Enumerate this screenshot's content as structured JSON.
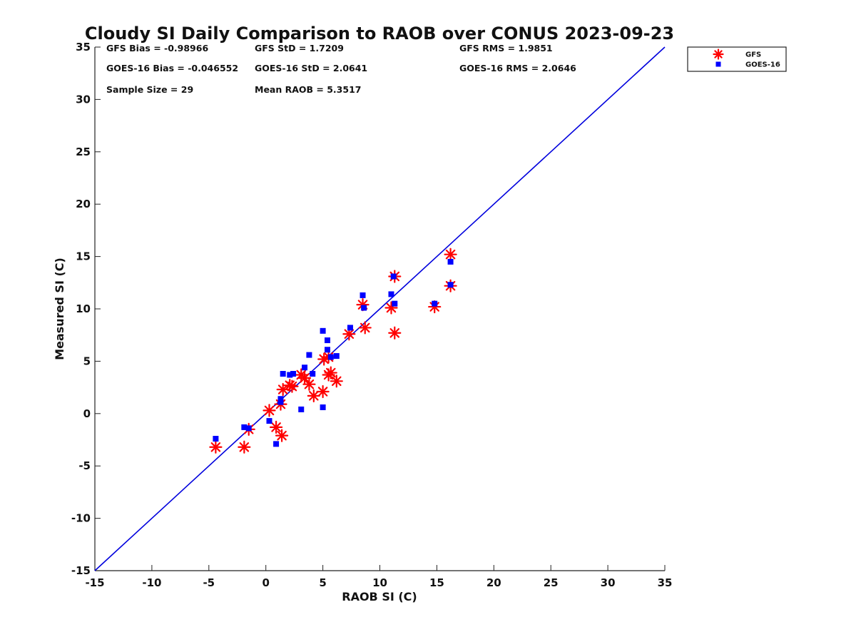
{
  "chart_data": {
    "type": "scatter",
    "title": "Cloudy SI Daily Comparison to RAOB over CONUS 2023-09-23",
    "xlabel": "RAOB SI (C)",
    "ylabel": "Measured SI (C)",
    "xlim": [
      -15,
      35
    ],
    "ylim": [
      -15,
      35
    ],
    "xticks": [
      -15,
      -10,
      -5,
      0,
      5,
      10,
      15,
      20,
      25,
      30,
      35
    ],
    "yticks": [
      -15,
      -10,
      -5,
      0,
      5,
      10,
      15,
      20,
      25,
      30,
      35
    ],
    "grid": false,
    "legend_position": "top-right-outside",
    "reference_line": {
      "x": [
        -15,
        35
      ],
      "y": [
        -15,
        35
      ],
      "color": "#0000dd"
    },
    "stats": [
      [
        "GFS Bias = -0.98966",
        "GFS StD = 1.7209",
        "GFS RMS = 1.9851"
      ],
      [
        "GOES-16 Bias = -0.046552",
        "GOES-16 StD = 2.0641",
        "GOES-16 RMS = 2.0646"
      ],
      [
        "Sample Size = 29",
        "Mean RAOB = 5.3517",
        ""
      ]
    ],
    "series": [
      {
        "name": "GFS",
        "marker": "asterisk",
        "color": "#ff0000",
        "points": [
          [
            -4.4,
            -3.2
          ],
          [
            -1.9,
            -3.2
          ],
          [
            -1.5,
            -1.5
          ],
          [
            0.3,
            0.3
          ],
          [
            0.9,
            -1.3
          ],
          [
            1.4,
            -2.1
          ],
          [
            1.3,
            0.9
          ],
          [
            1.5,
            2.3
          ],
          [
            2.1,
            2.7
          ],
          [
            2.3,
            2.6
          ],
          [
            3.1,
            3.7
          ],
          [
            3.4,
            3.4
          ],
          [
            3.8,
            2.8
          ],
          [
            4.2,
            1.7
          ],
          [
            5.0,
            2.1
          ],
          [
            5.1,
            5.2
          ],
          [
            5.5,
            3.7
          ],
          [
            5.5,
            5.4
          ],
          [
            5.7,
            3.9
          ],
          [
            6.2,
            3.1
          ],
          [
            7.3,
            7.6
          ],
          [
            8.5,
            10.4
          ],
          [
            8.7,
            8.2
          ],
          [
            11.0,
            10.1
          ],
          [
            11.3,
            13.1
          ],
          [
            11.3,
            7.7
          ],
          [
            14.8,
            10.2
          ],
          [
            16.2,
            15.2
          ],
          [
            16.2,
            12.2
          ]
        ]
      },
      {
        "name": "GOES-16",
        "marker": "square",
        "color": "#0000ff",
        "points": [
          [
            -4.4,
            -2.4
          ],
          [
            -1.9,
            -1.3
          ],
          [
            -1.5,
            -1.4
          ],
          [
            0.3,
            -0.7
          ],
          [
            0.9,
            -2.9
          ],
          [
            1.3,
            1.4
          ],
          [
            1.3,
            1.1
          ],
          [
            1.5,
            3.8
          ],
          [
            2.1,
            3.7
          ],
          [
            2.4,
            3.8
          ],
          [
            3.1,
            0.4
          ],
          [
            3.4,
            4.4
          ],
          [
            3.8,
            5.6
          ],
          [
            4.1,
            3.8
          ],
          [
            5.0,
            7.9
          ],
          [
            5.0,
            0.6
          ],
          [
            5.4,
            7.0
          ],
          [
            5.4,
            6.1
          ],
          [
            5.7,
            5.4
          ],
          [
            6.2,
            5.5
          ],
          [
            7.4,
            8.2
          ],
          [
            8.5,
            11.3
          ],
          [
            8.6,
            10.1
          ],
          [
            11.0,
            11.4
          ],
          [
            11.2,
            13.1
          ],
          [
            11.3,
            10.5
          ],
          [
            14.8,
            10.5
          ],
          [
            16.2,
            14.5
          ],
          [
            16.2,
            12.3
          ]
        ]
      }
    ]
  }
}
